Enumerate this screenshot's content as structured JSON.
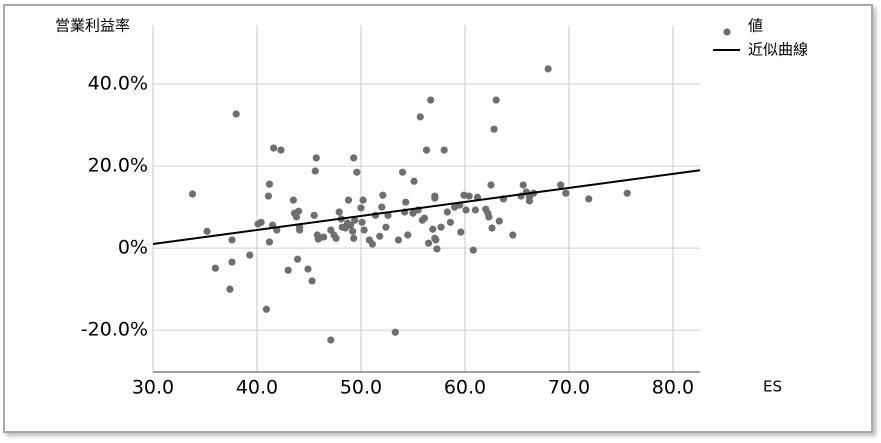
{
  "chart_data": {
    "type": "scatter",
    "title": "営業利益率",
    "x_label": "ES",
    "xlim": [
      30,
      82.6
    ],
    "ylim": [
      -30.2,
      54.4
    ],
    "grid": true,
    "legend": "top-right",
    "xticks": [
      {
        "value": 30,
        "label": "30.0"
      },
      {
        "value": 40,
        "label": "40.0"
      },
      {
        "value": 50,
        "label": "50.0"
      },
      {
        "value": 60,
        "label": "60.0"
      },
      {
        "value": 70,
        "label": "70.0"
      },
      {
        "value": 80,
        "label": "80.0"
      }
    ],
    "yticks": [
      {
        "value": -20,
        "label": "-20.0%"
      },
      {
        "value": 0,
        "label": "0%"
      },
      {
        "value": 20,
        "label": "20.0%"
      },
      {
        "value": 40,
        "label": "40.0%"
      }
    ],
    "series": [
      {
        "name": "値",
        "type": "scatter",
        "color": "#6f6f6f",
        "x": [
          33.8,
          35.2,
          36.0,
          37.4,
          37.6,
          37.6,
          38.0,
          39.3,
          40.1,
          40.4,
          40.9,
          41.1,
          41.2,
          41.2,
          41.5,
          41.6,
          41.9,
          42.3,
          43.0,
          43.5,
          43.6,
          43.8,
          43.9,
          44.0,
          44.1,
          44.1,
          44.9,
          45.3,
          45.5,
          45.7,
          45.6,
          45.8,
          45.9,
          46.4,
          47.1,
          47.1,
          47.4,
          47.6,
          47.9,
          48.1,
          48.2,
          48.5,
          48.7,
          48.8,
          49.0,
          49.2,
          49.3,
          49.3,
          49.4,
          49.6,
          50.0,
          50.1,
          50.2,
          50.3,
          50.8,
          51.1,
          51.4,
          51.8,
          52.0,
          52.1,
          52.4,
          52.6,
          53.3,
          53.6,
          54.0,
          54.2,
          54.3,
          54.5,
          55.0,
          55.1,
          55.5,
          55.7,
          55.9,
          56.1,
          56.3,
          56.5,
          56.7,
          56.9,
          57.1,
          57.1,
          57.1,
          57.2,
          57.3,
          57.7,
          58.0,
          58.3,
          58.6,
          59.0,
          59.5,
          59.6,
          59.9,
          60.1,
          60.4,
          60.8,
          61.0,
          61.2,
          62.0,
          62.2,
          62.3,
          62.5,
          62.6,
          62.8,
          63.0,
          63.3,
          63.7,
          64.6,
          65.4,
          65.6,
          65.9,
          66.2,
          66.2,
          66.6,
          68.0,
          69.2,
          69.7,
          71.9,
          75.6
        ],
        "values": [
          13.2,
          4.1,
          -4.9,
          -10.0,
          -3.4,
          2.0,
          32.7,
          -1.7,
          5.9,
          6.3,
          -14.9,
          12.7,
          15.6,
          1.5,
          5.6,
          24.4,
          4.4,
          23.9,
          -5.4,
          11.7,
          8.5,
          7.6,
          -2.7,
          9.0,
          4.4,
          5.1,
          -5.1,
          -8.0,
          8.0,
          22.0,
          18.8,
          3.2,
          2.2,
          2.7,
          -22.4,
          4.4,
          3.2,
          2.4,
          8.8,
          7.1,
          5.1,
          4.9,
          6.1,
          11.7,
          5.6,
          4.1,
          22.0,
          2.4,
          6.8,
          18.5,
          9.8,
          6.3,
          11.7,
          4.4,
          2.0,
          1.0,
          8.0,
          2.9,
          10.0,
          12.9,
          5.1,
          8.0,
          -20.5,
          2.0,
          18.5,
          8.8,
          11.2,
          3.2,
          8.5,
          16.3,
          9.3,
          32.0,
          6.8,
          7.3,
          23.9,
          1.2,
          36.1,
          4.6,
          12.7,
          12.2,
          2.4,
          2.0,
          -0.2,
          5.1,
          23.9,
          8.8,
          6.3,
          10.0,
          10.5,
          3.9,
          12.9,
          9.3,
          12.7,
          -0.5,
          9.3,
          12.4,
          9.5,
          8.5,
          7.6,
          15.4,
          4.9,
          29.0,
          36.1,
          6.6,
          12.0,
          3.2,
          12.7,
          15.4,
          13.7,
          11.5,
          12.4,
          13.4,
          43.7,
          15.4,
          13.4,
          12.0,
          13.4
        ]
      },
      {
        "name": "近似曲線",
        "type": "line",
        "color": "#000000",
        "x": [
          30,
          82.6
        ],
        "values": [
          1.0,
          19.0
        ]
      }
    ]
  }
}
